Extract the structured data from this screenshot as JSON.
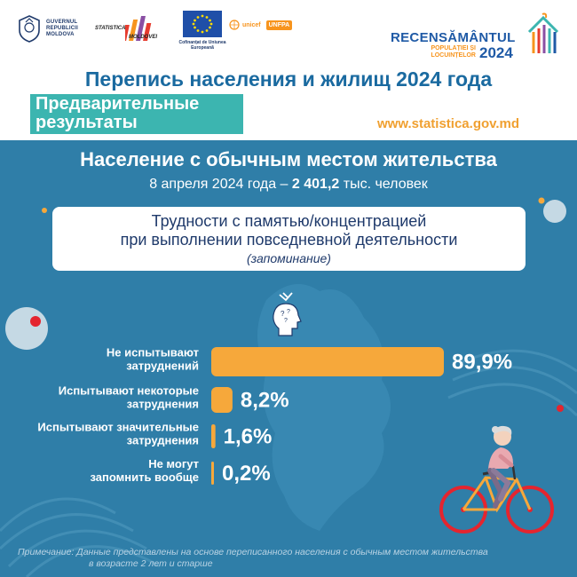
{
  "header": {
    "gov_logo_lines": [
      "GUVERNUL",
      "REPUBLICII",
      "MOLDOVA"
    ],
    "stat_logo_lines": [
      "STATISTICA",
      "MOLDOVEI"
    ],
    "eu_caption": "Cofinanțat de Uniunea Europeană",
    "unicef_label": "unicef",
    "unfpa_label": "UNFPA",
    "census_brand": "RECENSĂMÂNTUL",
    "census_sub": [
      "POPULAȚIEI ȘI",
      "LOCUINȚELOR"
    ],
    "census_year": "2024",
    "main_title": "Перепись населения и жилищ 2024 года",
    "prelim_label": "Предварительные результаты",
    "website": "www.statistica.gov.md"
  },
  "section": {
    "title": "Население с обычным местом жительства",
    "subtitle_date": "8 апреля 2024 года –",
    "subtitle_value": "2 401,2",
    "subtitle_unit": "тыс. человек"
  },
  "topic": {
    "line1": "Трудности с памятью/концентрацией",
    "line2": "при выполнении повседневной деятельности",
    "line3": "(запоминание)"
  },
  "chart_data": {
    "type": "bar",
    "orientation": "horizontal",
    "unit": "%",
    "categories": [
      [
        "Не испытывают",
        "затруднений"
      ],
      [
        "Испытывают некоторые",
        "затруднения"
      ],
      [
        "Испытывают значительные",
        "затруднения"
      ],
      [
        "Не могут",
        "запомнить вообще"
      ]
    ],
    "values": [
      89.9,
      8.2,
      1.6,
      0.2
    ],
    "value_labels": [
      "89,9%",
      "8,2%",
      "1,6%",
      "0,2%"
    ],
    "xlim": [
      0,
      89.9
    ],
    "colors": {
      "bar": "#f6a83b",
      "label": "#ffffff"
    }
  },
  "note": {
    "line1": "Примечание: Данные представлены на основе переписанного населения с обычным местом жительства",
    "line2": "в возрасте 2 лет и старше"
  },
  "colors": {
    "blue_bg": "#2f7ea8",
    "teal": "#3cb5b0",
    "orange": "#f0a030",
    "title_blue": "#1a6aa0"
  }
}
